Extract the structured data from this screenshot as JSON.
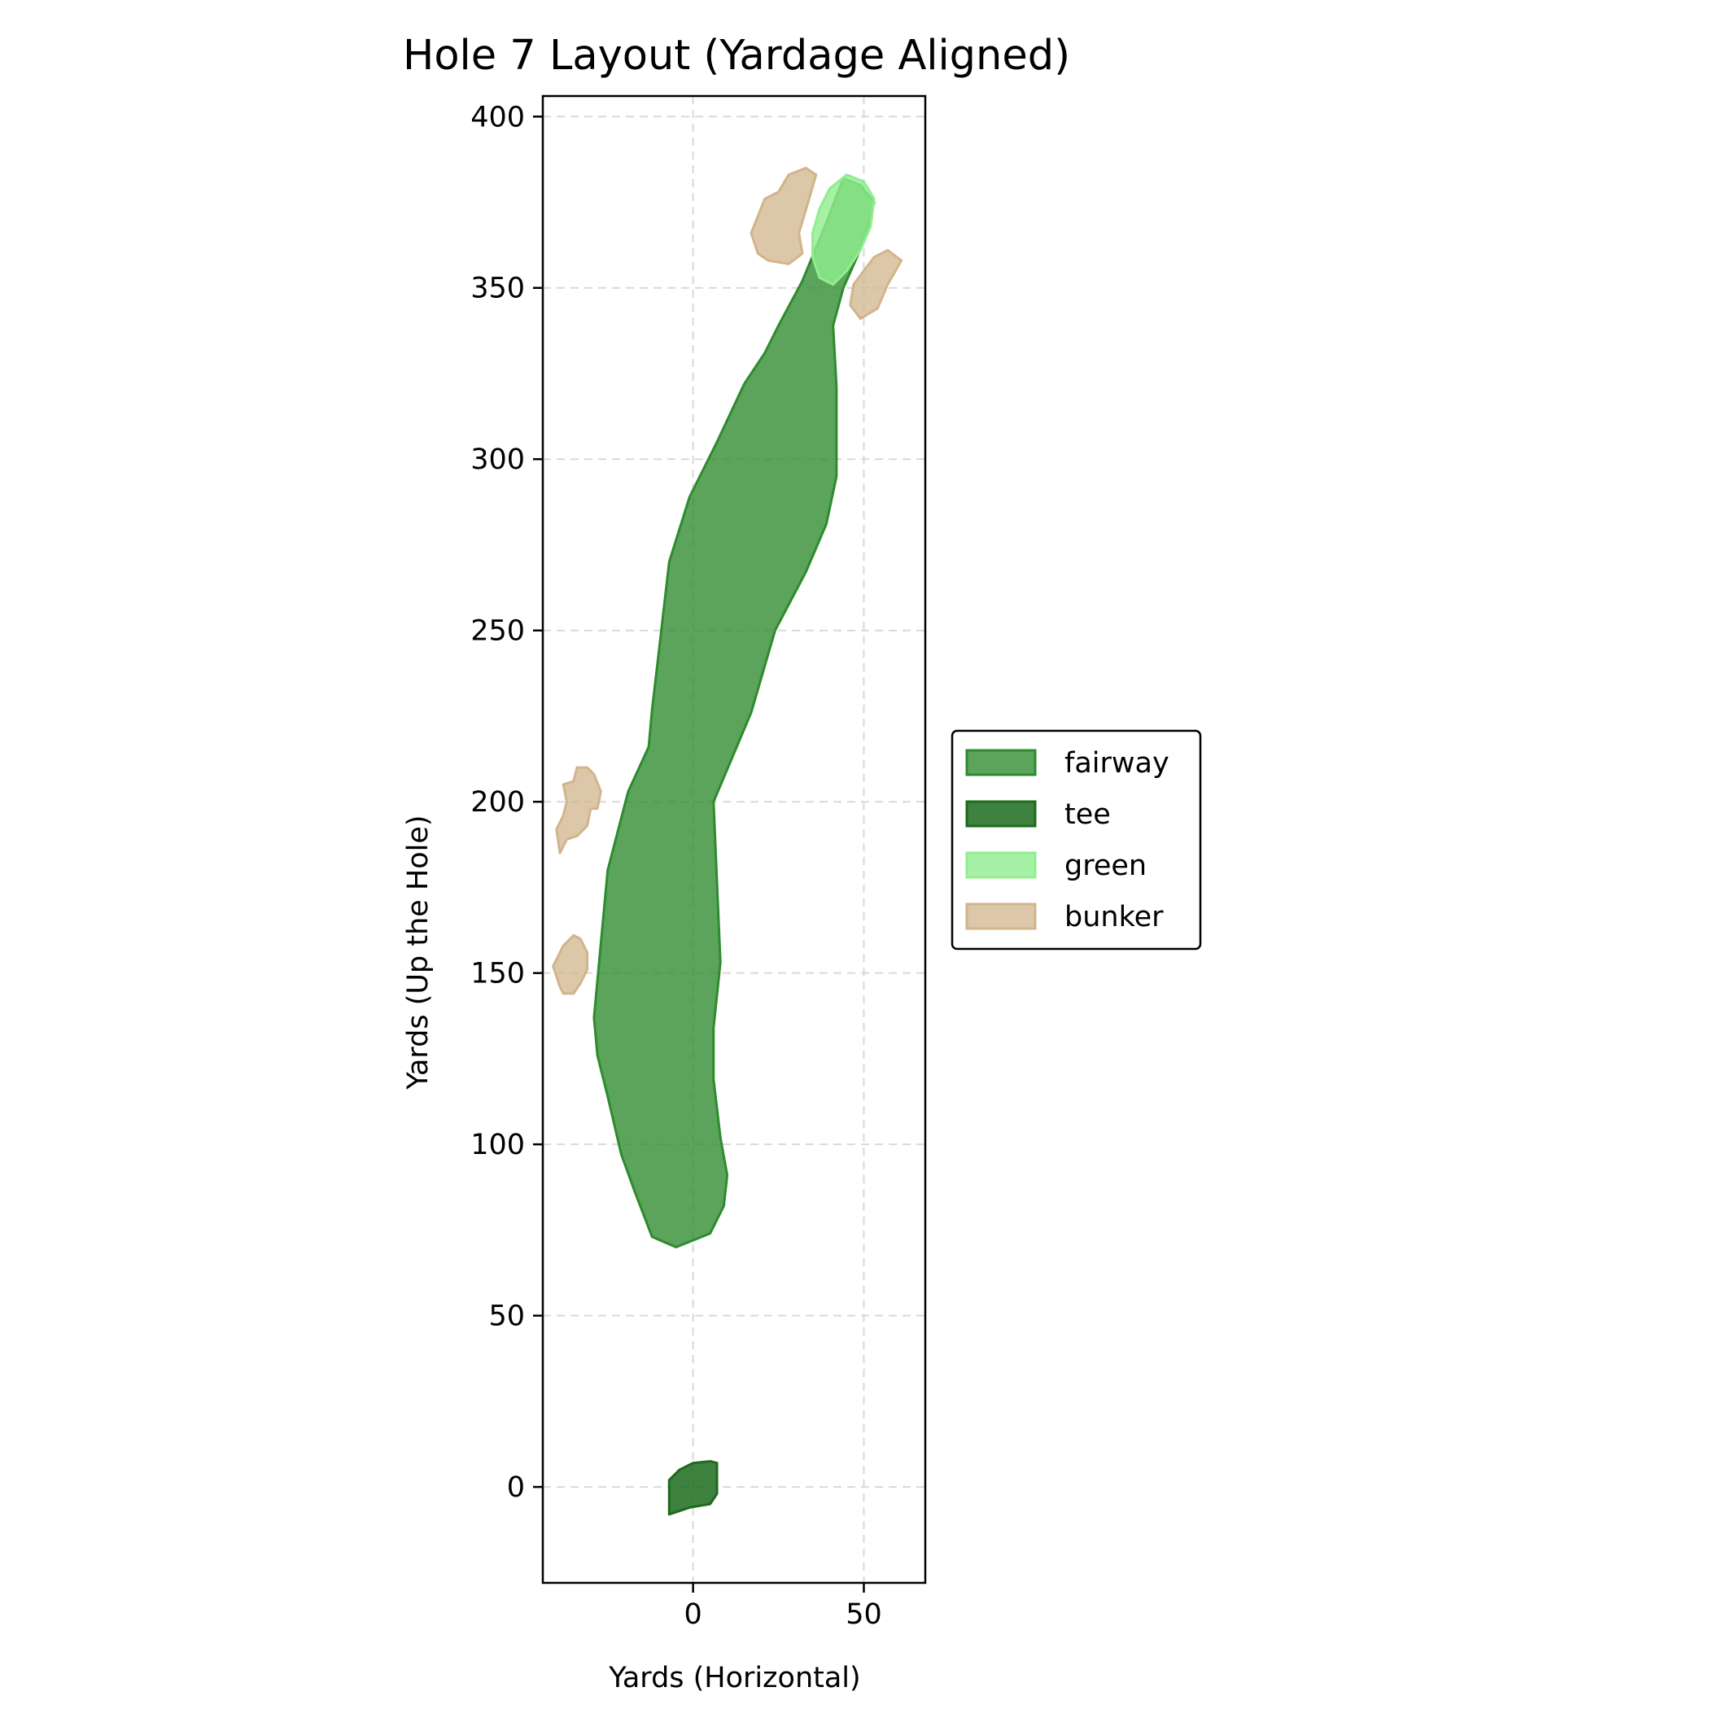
{
  "chart_data": {
    "type": "area",
    "title": "Hole 7 Layout (Yardage Aligned)",
    "xlabel": "Yards (Horizontal)",
    "ylabel": "Yards (Up the Hole)",
    "xlim": [
      -44,
      68
    ],
    "ylim": [
      -28,
      406
    ],
    "xticks": [
      0,
      50
    ],
    "yticks": [
      0,
      50,
      100,
      150,
      200,
      250,
      300,
      350,
      400
    ],
    "grid": true,
    "legend_position": "right",
    "series": [
      {
        "name": "fairway",
        "fill": "#2e8b2e",
        "fill_opacity": 0.78,
        "stroke": "#2e8b2e",
        "polygons": [
          [
            [
              -5,
              70
            ],
            [
              -12,
              73
            ],
            [
              -17,
              86
            ],
            [
              -21,
              97
            ],
            [
              -25,
              114
            ],
            [
              -28,
              126
            ],
            [
              -29,
              137
            ],
            [
              -25,
              180
            ],
            [
              -19,
              203
            ],
            [
              -13,
              216
            ],
            [
              -12,
              227
            ],
            [
              -10,
              244
            ],
            [
              -7,
              270
            ],
            [
              -1,
              289
            ],
            [
              7,
              305
            ],
            [
              15,
              322
            ],
            [
              21,
              331
            ],
            [
              25,
              339
            ],
            [
              32,
              352
            ],
            [
              39,
              369
            ],
            [
              44,
              382
            ],
            [
              49,
              380
            ],
            [
              53,
              375
            ],
            [
              51,
              367
            ],
            [
              48,
              359
            ],
            [
              44,
              350
            ],
            [
              41,
              339
            ],
            [
              42,
              321
            ],
            [
              42,
              295
            ],
            [
              39,
              281
            ],
            [
              33,
              267
            ],
            [
              24,
              250
            ],
            [
              17,
              226
            ],
            [
              6,
              200
            ],
            [
              8,
              153
            ],
            [
              6,
              134
            ],
            [
              6,
              119
            ],
            [
              8,
              102
            ],
            [
              10,
              91
            ],
            [
              9,
              82
            ],
            [
              5,
              74
            ]
          ]
        ]
      },
      {
        "name": "tee",
        "fill": "#1d6b1d",
        "fill_opacity": 0.85,
        "stroke": "#1d6b1d",
        "polygons": [
          [
            [
              -7,
              -8
            ],
            [
              -1,
              -6
            ],
            [
              5,
              -5
            ],
            [
              7,
              -2
            ],
            [
              7,
              7
            ],
            [
              5,
              7.5
            ],
            [
              0,
              7
            ],
            [
              -4,
              5
            ],
            [
              -7,
              2
            ]
          ]
        ]
      },
      {
        "name": "green",
        "fill": "#90ee90",
        "fill_opacity": 0.8,
        "stroke": "#90ee90",
        "polygons": [
          [
            [
              35,
              359
            ],
            [
              35,
              366
            ],
            [
              37,
              373
            ],
            [
              40,
              379
            ],
            [
              45,
              383
            ],
            [
              50,
              381
            ],
            [
              53,
              376
            ],
            [
              52,
              368
            ],
            [
              49,
              361
            ],
            [
              45,
              355
            ],
            [
              41,
              351
            ],
            [
              37,
              353
            ]
          ]
        ]
      },
      {
        "name": "bunker",
        "fill": "#d2b48c",
        "fill_opacity": 0.75,
        "stroke": "#d2b48c",
        "polygons": [
          [
            [
              17,
              366
            ],
            [
              21,
              376
            ],
            [
              25,
              378
            ],
            [
              28,
              383
            ],
            [
              33,
              385
            ],
            [
              36,
              383
            ],
            [
              34,
              376
            ],
            [
              31,
              366
            ],
            [
              32,
              360
            ],
            [
              28,
              357
            ],
            [
              22,
              358
            ],
            [
              19,
              360
            ]
          ],
          [
            [
              46,
              345
            ],
            [
              49,
              341
            ],
            [
              54,
              344
            ],
            [
              57,
              351
            ],
            [
              61,
              358
            ],
            [
              57,
              361
            ],
            [
              53,
              359
            ],
            [
              50,
              355
            ],
            [
              47,
              351
            ]
          ],
          [
            [
              -39,
              185
            ],
            [
              -37,
              189
            ],
            [
              -34,
              190
            ],
            [
              -31,
              193
            ],
            [
              -30,
              198
            ],
            [
              -28,
              198
            ],
            [
              -27,
              203
            ],
            [
              -29,
              208
            ],
            [
              -31,
              210
            ],
            [
              -34,
              210
            ],
            [
              -35,
              206
            ],
            [
              -38,
              205
            ],
            [
              -37,
              200
            ],
            [
              -38,
              196
            ],
            [
              -40,
              192
            ]
          ],
          [
            [
              -39,
              146
            ],
            [
              -41,
              152
            ],
            [
              -38,
              158
            ],
            [
              -35,
              161
            ],
            [
              -33,
              160
            ],
            [
              -31,
              156
            ],
            [
              -31,
              151
            ],
            [
              -33,
              147
            ],
            [
              -35,
              144
            ],
            [
              -38,
              144
            ]
          ]
        ]
      }
    ]
  }
}
